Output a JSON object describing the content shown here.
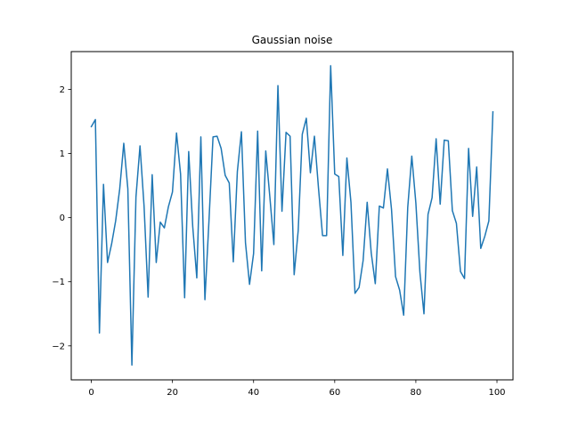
{
  "chart_data": {
    "type": "line",
    "title": "Gaussian noise",
    "xlabel": "",
    "ylabel": "",
    "xlim": [
      -4.95,
      103.95
    ],
    "ylim": [
      -2.53,
      2.59
    ],
    "xticks": [
      0,
      20,
      40,
      60,
      80,
      100
    ],
    "yticks": [
      -2,
      -1,
      0,
      1,
      2
    ],
    "xtick_labels": [
      "0",
      "20",
      "40",
      "60",
      "80",
      "100"
    ],
    "ytick_labels": [
      "−2",
      "−1",
      "0",
      "1",
      "2"
    ],
    "grid": false,
    "line_color": "#1f77b4",
    "series": [
      {
        "values": [
          1.42,
          1.53,
          -1.8,
          0.52,
          -0.7,
          -0.41,
          -0.05,
          0.45,
          1.16,
          0.45,
          -2.3,
          0.32,
          1.12,
          0.18,
          -1.24,
          0.67,
          -0.7,
          -0.07,
          -0.16,
          0.17,
          0.4,
          1.32,
          0.68,
          -1.25,
          1.03,
          -0.14,
          -0.94,
          1.26,
          -1.28,
          -0.05,
          1.26,
          1.27,
          1.08,
          0.66,
          0.54,
          -0.69,
          0.72,
          1.34,
          -0.39,
          -1.04,
          -0.56,
          1.35,
          -0.83,
          1.04,
          0.33,
          -0.42,
          2.06,
          0.1,
          1.33,
          1.27,
          -0.89,
          -0.2,
          1.3,
          1.55,
          0.7,
          1.27,
          0.46,
          -0.28,
          -0.28,
          2.37,
          0.68,
          0.64,
          -0.59,
          0.93,
          0.24,
          -1.18,
          -1.09,
          -0.67,
          0.24,
          -0.55,
          -1.03,
          0.18,
          0.15,
          0.76,
          0.13,
          -0.92,
          -1.13,
          -1.52,
          0.16,
          0.96,
          0.23,
          -0.85,
          -1.5,
          0.05,
          0.31,
          1.23,
          0.21,
          1.21,
          1.2,
          0.11,
          -0.09,
          -0.84,
          -0.95,
          1.08,
          0.02,
          0.79,
          -0.48,
          -0.29,
          -0.05,
          1.65
        ]
      }
    ]
  }
}
